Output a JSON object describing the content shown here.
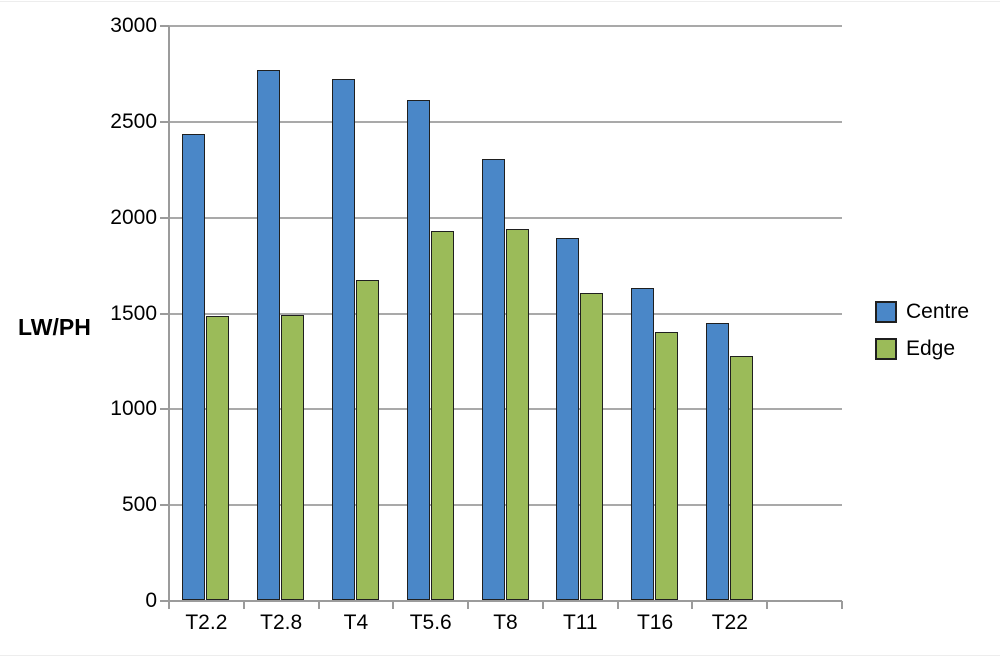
{
  "chart_data": {
    "type": "bar",
    "title": "",
    "ylabel": "LW/PH",
    "xlabel": "",
    "categories": [
      "T2.2",
      "T2.8",
      "T4",
      "T5.6",
      "T8",
      "T11",
      "T16",
      "T22"
    ],
    "series": [
      {
        "name": "Centre",
        "color": "#4a87c8",
        "values": [
          2420,
          2755,
          2710,
          2600,
          2290,
          1880,
          1615,
          1435
        ]
      },
      {
        "name": "Edge",
        "color": "#9bbb59",
        "values": [
          1470,
          1475,
          1660,
          1915,
          1925,
          1590,
          1390,
          1265
        ]
      }
    ],
    "ylim": [
      0,
      3000
    ],
    "ytick_step": 500,
    "ytick_labels": [
      "0",
      "500",
      "1000",
      "1500",
      "2000",
      "2500",
      "3000"
    ],
    "grid": true,
    "legend_position": "right",
    "trailing_empty_slots": 1,
    "colors": {
      "bar_border": "#1f1f1f",
      "gridline": "#a9a9a9",
      "axis": "#9b9b9b",
      "text": "#000000"
    }
  }
}
